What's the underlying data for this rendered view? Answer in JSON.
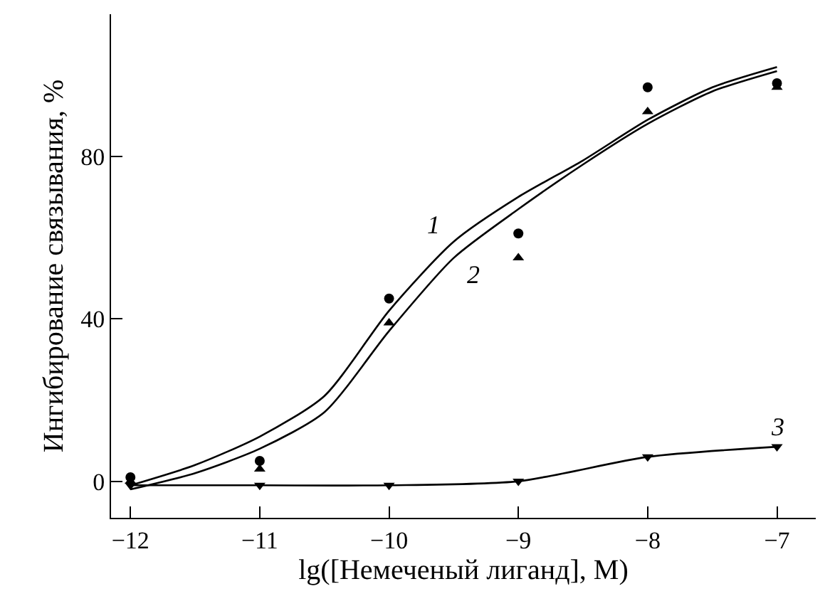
{
  "chart_data": {
    "type": "scatter",
    "xlabel": "lg([Немеченый лиганд], М)",
    "ylabel": "Ингибирование связывания, %",
    "xlim": [
      -12.15,
      -6.7
    ],
    "ylim": [
      -9,
      115
    ],
    "xticks": [
      -12,
      -11,
      -10,
      -9,
      -8,
      -7
    ],
    "yticks": [
      0,
      40,
      80
    ],
    "grid": false,
    "legend": false,
    "series": [
      {
        "type": "line",
        "name": "1",
        "color": "#000000",
        "marker": "none",
        "x": [
          -12,
          -11.5,
          -11,
          -10.5,
          -10,
          -9.5,
          -9,
          -8.5,
          -8,
          -7.5,
          -7
        ],
        "values": [
          -1,
          4,
          11,
          21,
          42,
          59,
          70,
          79,
          89,
          97,
          102
        ]
      },
      {
        "type": "line",
        "name": "2",
        "color": "#000000",
        "marker": "none",
        "x": [
          -12,
          -11.5,
          -11,
          -10.5,
          -10,
          -9.5,
          -9,
          -8.5,
          -8,
          -7.5,
          -7
        ],
        "values": [
          -2,
          2,
          8,
          17,
          37,
          55,
          67,
          78,
          88,
          96,
          101
        ]
      },
      {
        "type": "line",
        "name": "3",
        "color": "#000000",
        "marker": "triangle-down",
        "x": [
          -12,
          -11,
          -10,
          -9,
          -8,
          -7
        ],
        "values": [
          -1,
          -1,
          -1,
          0,
          6,
          8.5
        ]
      },
      {
        "type": "scatter",
        "color": "#000000",
        "marker": "circle",
        "x": [
          -12,
          -11,
          -10,
          -9,
          -8,
          -7
        ],
        "values": [
          1,
          5,
          45,
          61,
          97,
          98
        ]
      },
      {
        "type": "scatter",
        "color": "#000000",
        "marker": "triangle",
        "x": [
          -12,
          -11,
          -10,
          -9,
          -8,
          -7
        ],
        "values": [
          0,
          3,
          39,
          55,
          91,
          97
        ]
      }
    ]
  }
}
